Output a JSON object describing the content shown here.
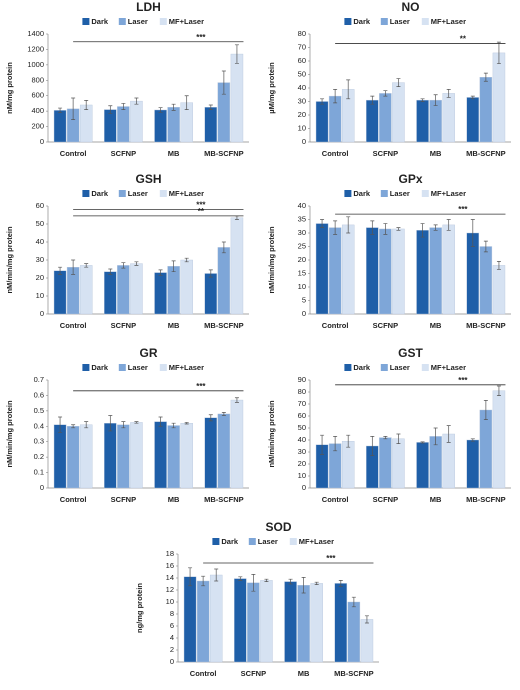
{
  "chart_data": [
    {
      "type": "bar",
      "title": "LDH",
      "y_label": "nM/mg protein",
      "categories": [
        "Control",
        "SCFNP",
        "MB",
        "MB-SCFNP"
      ],
      "series": [
        {
          "name": "Dark",
          "color": "#1f5fa8",
          "values": [
            410,
            420,
            415,
            450
          ],
          "errors": [
            30,
            50,
            30,
            30
          ]
        },
        {
          "name": "Laser",
          "color": "#7ea6d8",
          "values": [
            430,
            460,
            450,
            770
          ],
          "errors": [
            140,
            40,
            40,
            150
          ]
        },
        {
          "name": "MF+Laser",
          "color": "#d6e2f2",
          "values": [
            480,
            530,
            510,
            1140
          ],
          "errors": [
            60,
            40,
            90,
            120
          ]
        }
      ],
      "ylim": [
        0,
        1400
      ],
      "yticks": [
        0,
        200,
        400,
        600,
        800,
        1000,
        1200,
        1400
      ],
      "grid": false,
      "annotations": [
        {
          "label": "***",
          "from": "Control",
          "to": "MB-SCFNP",
          "y": 1300
        }
      ]
    },
    {
      "type": "bar",
      "title": "NO",
      "y_label": "µM/mg protein",
      "categories": [
        "Control",
        "SCFNP",
        "MB",
        "MB-SCFNP"
      ],
      "series": [
        {
          "name": "Dark",
          "color": "#1f5fa8",
          "values": [
            30,
            31,
            31,
            33
          ],
          "errors": [
            2,
            3,
            1,
            1
          ]
        },
        {
          "name": "Laser",
          "color": "#7ea6d8",
          "values": [
            34,
            36,
            31,
            48
          ],
          "errors": [
            5,
            2,
            4,
            3
          ]
        },
        {
          "name": "MF+Laser",
          "color": "#d6e2f2",
          "values": [
            39,
            44,
            36,
            66
          ],
          "errors": [
            7,
            3,
            3,
            8
          ]
        }
      ],
      "ylim": [
        0,
        80
      ],
      "yticks": [
        0,
        10,
        20,
        30,
        40,
        50,
        60,
        70,
        80
      ],
      "grid": false,
      "annotations": [
        {
          "label": "**",
          "from": "Control",
          "to": "MB-SCFNP",
          "y": 73
        }
      ]
    },
    {
      "type": "bar",
      "title": "GSH",
      "y_label": "nM/min/mg protein",
      "categories": [
        "Control",
        "SCFNP",
        "MB",
        "MB-SCFNP"
      ],
      "series": [
        {
          "name": "Dark",
          "color": "#1f5fa8",
          "values": [
            24,
            23.5,
            23,
            22.5
          ],
          "errors": [
            2,
            1.5,
            1.5,
            2
          ]
        },
        {
          "name": "Laser",
          "color": "#7ea6d8",
          "values": [
            26,
            27,
            26.5,
            37
          ],
          "errors": [
            4,
            1.5,
            3,
            3
          ]
        },
        {
          "name": "MF+Laser",
          "color": "#d6e2f2",
          "values": [
            27,
            28,
            30,
            53.5
          ],
          "errors": [
            1,
            1,
            1,
            1
          ]
        }
      ],
      "ylim": [
        0,
        60
      ],
      "yticks": [
        0,
        10,
        20,
        30,
        40,
        50,
        60
      ],
      "grid": false,
      "annotations": [
        {
          "label": "***",
          "from": "Control",
          "to": "MB-SCFNP",
          "y": 58
        },
        {
          "label": "**",
          "from": "Control",
          "to": "MB-SCFNP",
          "y": 54.5
        }
      ]
    },
    {
      "type": "bar",
      "title": "GPx",
      "y_label": "nM/min/mg protein",
      "categories": [
        "Control",
        "SCFNP",
        "MB",
        "MB-SCFNP"
      ],
      "series": [
        {
          "name": "Dark",
          "color": "#1f5fa8",
          "values": [
            33.5,
            32,
            31,
            30
          ],
          "errors": [
            1.5,
            2.5,
            2.5,
            5
          ]
        },
        {
          "name": "Laser",
          "color": "#7ea6d8",
          "values": [
            32,
            31.5,
            32,
            25
          ],
          "errors": [
            2.5,
            2,
            1,
            2
          ]
        },
        {
          "name": "MF+Laser",
          "color": "#d6e2f2",
          "values": [
            33,
            31.5,
            33,
            18
          ],
          "errors": [
            3,
            0.5,
            2,
            1.5
          ]
        }
      ],
      "ylim": [
        0,
        40
      ],
      "yticks": [
        0,
        5,
        10,
        15,
        20,
        25,
        30,
        35,
        40
      ],
      "grid": false,
      "annotations": [
        {
          "label": "***",
          "from": "Control",
          "to": "MB-SCFNP",
          "y": 37
        }
      ]
    },
    {
      "type": "bar",
      "title": "GR",
      "y_label": "nM/min/mg protein",
      "categories": [
        "Control",
        "SCFNP",
        "MB",
        "MB-SCFNP"
      ],
      "series": [
        {
          "name": "Dark",
          "color": "#1f5fa8",
          "values": [
            0.41,
            0.42,
            0.43,
            0.455
          ],
          "errors": [
            0.05,
            0.05,
            0.03,
            0.02
          ]
        },
        {
          "name": "Laser",
          "color": "#7ea6d8",
          "values": [
            0.4,
            0.41,
            0.405,
            0.48
          ],
          "errors": [
            0.01,
            0.02,
            0.015,
            0.01
          ]
        },
        {
          "name": "MF+Laser",
          "color": "#d6e2f2",
          "values": [
            0.41,
            0.425,
            0.42,
            0.57
          ],
          "errors": [
            0.02,
            0.005,
            0.005,
            0.015
          ]
        }
      ],
      "ylim": [
        0,
        0.7
      ],
      "yticks": [
        0,
        0.1,
        0.2,
        0.3,
        0.4,
        0.5,
        0.6,
        0.7
      ],
      "grid": false,
      "annotations": [
        {
          "label": "***",
          "from": "Control",
          "to": "MB-SCFNP",
          "y": 0.63
        }
      ]
    },
    {
      "type": "bar",
      "title": "GST",
      "y_label": "nM/min/mg protein",
      "categories": [
        "Control",
        "SCFNP",
        "MB",
        "MB-SCFNP"
      ],
      "series": [
        {
          "name": "Dark",
          "color": "#1f5fa8",
          "values": [
            36,
            35,
            38,
            40
          ],
          "errors": [
            8,
            8,
            0.5,
            1
          ]
        },
        {
          "name": "Laser",
          "color": "#7ea6d8",
          "values": [
            37,
            42,
            43,
            65
          ],
          "errors": [
            6,
            1,
            7,
            8
          ]
        },
        {
          "name": "MF+Laser",
          "color": "#d6e2f2",
          "values": [
            39,
            41,
            45,
            81
          ],
          "errors": [
            5,
            4,
            7,
            4
          ]
        }
      ],
      "ylim": [
        0,
        90
      ],
      "yticks": [
        0,
        10,
        20,
        30,
        40,
        50,
        60,
        70,
        80,
        90
      ],
      "grid": false,
      "annotations": [
        {
          "label": "***",
          "from": "Control",
          "to": "MB-SCFNP",
          "y": 86
        }
      ]
    },
    {
      "type": "bar",
      "title": "SOD",
      "y_label": "ng/mg protein",
      "categories": [
        "Control",
        "SCFNP",
        "MB",
        "MB-SCFNP"
      ],
      "series": [
        {
          "name": "Dark",
          "color": "#1f5fa8",
          "values": [
            14.2,
            13.9,
            13.4,
            13.1
          ],
          "errors": [
            1.5,
            0.3,
            0.4,
            0.5
          ]
        },
        {
          "name": "Laser",
          "color": "#7ea6d8",
          "values": [
            13.5,
            13.2,
            12.8,
            10
          ],
          "errors": [
            0.8,
            1.4,
            1.3,
            0.8
          ]
        },
        {
          "name": "MF+Laser",
          "color": "#d6e2f2",
          "values": [
            14.5,
            13.6,
            13.1,
            7.1
          ],
          "errors": [
            1,
            0.2,
            0.2,
            0.6
          ]
        }
      ],
      "ylim": [
        0,
        18
      ],
      "yticks": [
        0,
        2,
        4,
        6,
        8,
        10,
        12,
        14,
        16,
        18
      ],
      "grid": false,
      "annotations": [
        {
          "label": "***",
          "from": "Control",
          "to": "MB-SCFNP",
          "y": 16.5
        }
      ]
    }
  ]
}
